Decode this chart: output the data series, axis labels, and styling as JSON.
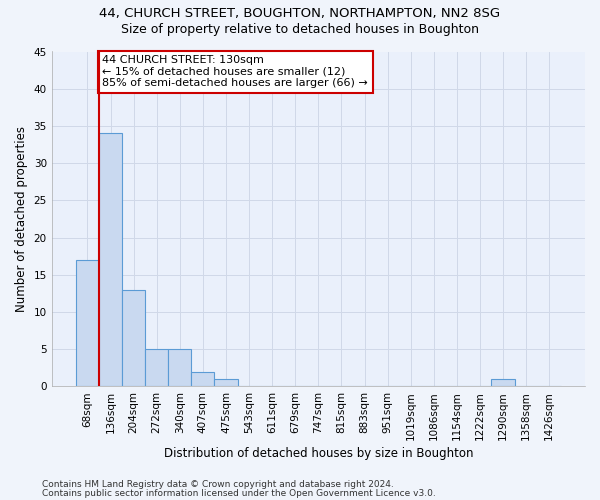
{
  "title1": "44, CHURCH STREET, BOUGHTON, NORTHAMPTON, NN2 8SG",
  "title2": "Size of property relative to detached houses in Boughton",
  "xlabel": "Distribution of detached houses by size in Boughton",
  "ylabel": "Number of detached properties",
  "bar_color": "#c9d9f0",
  "bar_edge_color": "#5b9bd5",
  "categories": [
    "68sqm",
    "136sqm",
    "204sqm",
    "272sqm",
    "340sqm",
    "407sqm",
    "475sqm",
    "543sqm",
    "611sqm",
    "679sqm",
    "747sqm",
    "815sqm",
    "883sqm",
    "951sqm",
    "1019sqm",
    "1086sqm",
    "1154sqm",
    "1222sqm",
    "1290sqm",
    "1358sqm",
    "1426sqm"
  ],
  "values": [
    17,
    34,
    13,
    5,
    5,
    2,
    1,
    0,
    0,
    0,
    0,
    0,
    0,
    0,
    0,
    0,
    0,
    0,
    1,
    0,
    0
  ],
  "ylim": [
    0,
    45
  ],
  "yticks": [
    0,
    5,
    10,
    15,
    20,
    25,
    30,
    35,
    40,
    45
  ],
  "vline_x": 0.5,
  "vline_color": "#cc0000",
  "annotation_line1": "44 CHURCH STREET: 130sqm",
  "annotation_line2": "← 15% of detached houses are smaller (12)",
  "annotation_line3": "85% of semi-detached houses are larger (66) →",
  "annotation_box_color": "#cc0000",
  "annotation_box_bg": "#ffffff",
  "footer1": "Contains HM Land Registry data © Crown copyright and database right 2024.",
  "footer2": "Contains public sector information licensed under the Open Government Licence v3.0.",
  "fig_bg_color": "#f0f4fb",
  "plot_bg_color": "#eaf0fb",
  "grid_color": "#d0d8e8",
  "title1_fontsize": 9.5,
  "title2_fontsize": 9,
  "xlabel_fontsize": 8.5,
  "ylabel_fontsize": 8.5,
  "tick_fontsize": 7.5,
  "footer_fontsize": 6.5,
  "annotation_fontsize": 8
}
